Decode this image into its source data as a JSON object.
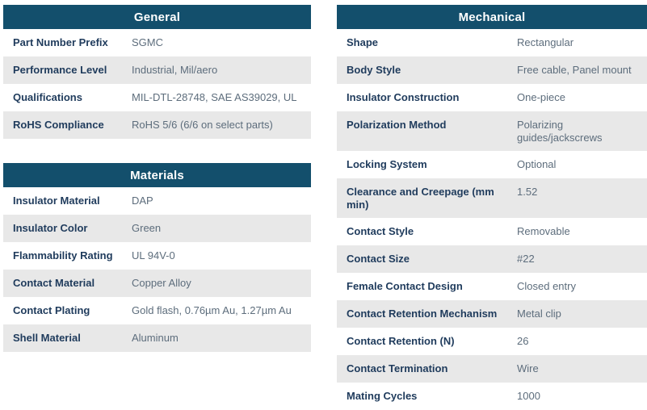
{
  "colors": {
    "header_bg": "#134F6C",
    "header_text": "#FFFFFF",
    "label_text": "#1F3B5C",
    "value_text": "#5D6D7C",
    "stripe_bg": "#E8E8E8",
    "row_bg": "#FFFFFF"
  },
  "tables": [
    {
      "id": "general",
      "title": "General",
      "column": "left",
      "rows": [
        {
          "label": "Part Number Prefix",
          "value": "SGMC"
        },
        {
          "label": "Performance Level",
          "value": "Industrial, Mil/aero"
        },
        {
          "label": "Qualifications",
          "value": "MIL-DTL-28748, SAE AS39029, UL"
        },
        {
          "label": "RoHS Compliance",
          "value": "RoHS 5/6 (6/6 on select parts)"
        }
      ]
    },
    {
      "id": "materials",
      "title": "Materials",
      "column": "left",
      "rows": [
        {
          "label": "Insulator Material",
          "value": "DAP"
        },
        {
          "label": "Insulator Color",
          "value": "Green"
        },
        {
          "label": "Flammability Rating",
          "value": "UL 94V-0"
        },
        {
          "label": "Contact Material",
          "value": "Copper Alloy"
        },
        {
          "label": "Contact Plating",
          "value": "Gold flash, 0.76µm Au, 1.27µm Au"
        },
        {
          "label": "Shell Material",
          "value": "Aluminum"
        }
      ]
    },
    {
      "id": "mechanical",
      "title": "Mechanical",
      "column": "right",
      "rows": [
        {
          "label": "Shape",
          "value": "Rectangular"
        },
        {
          "label": "Body Style",
          "value": "Free cable, Panel mount"
        },
        {
          "label": "Insulator Construction",
          "value": "One-piece"
        },
        {
          "label": "Polarization Method",
          "value": "Polarizing guides/jackscrews"
        },
        {
          "label": "Locking System",
          "value": "Optional"
        },
        {
          "label": "Clearance and Creepage (mm min)",
          "value": "1.52"
        },
        {
          "label": "Contact Style",
          "value": "Removable"
        },
        {
          "label": "Contact Size",
          "value": "#22"
        },
        {
          "label": "Female Contact Design",
          "value": "Closed entry"
        },
        {
          "label": "Contact Retention Mechanism",
          "value": "Metal clip"
        },
        {
          "label": "Contact Retention (N)",
          "value": "26"
        },
        {
          "label": "Contact Termination",
          "value": "Wire"
        },
        {
          "label": "Mating Cycles",
          "value": "1000"
        }
      ]
    }
  ]
}
